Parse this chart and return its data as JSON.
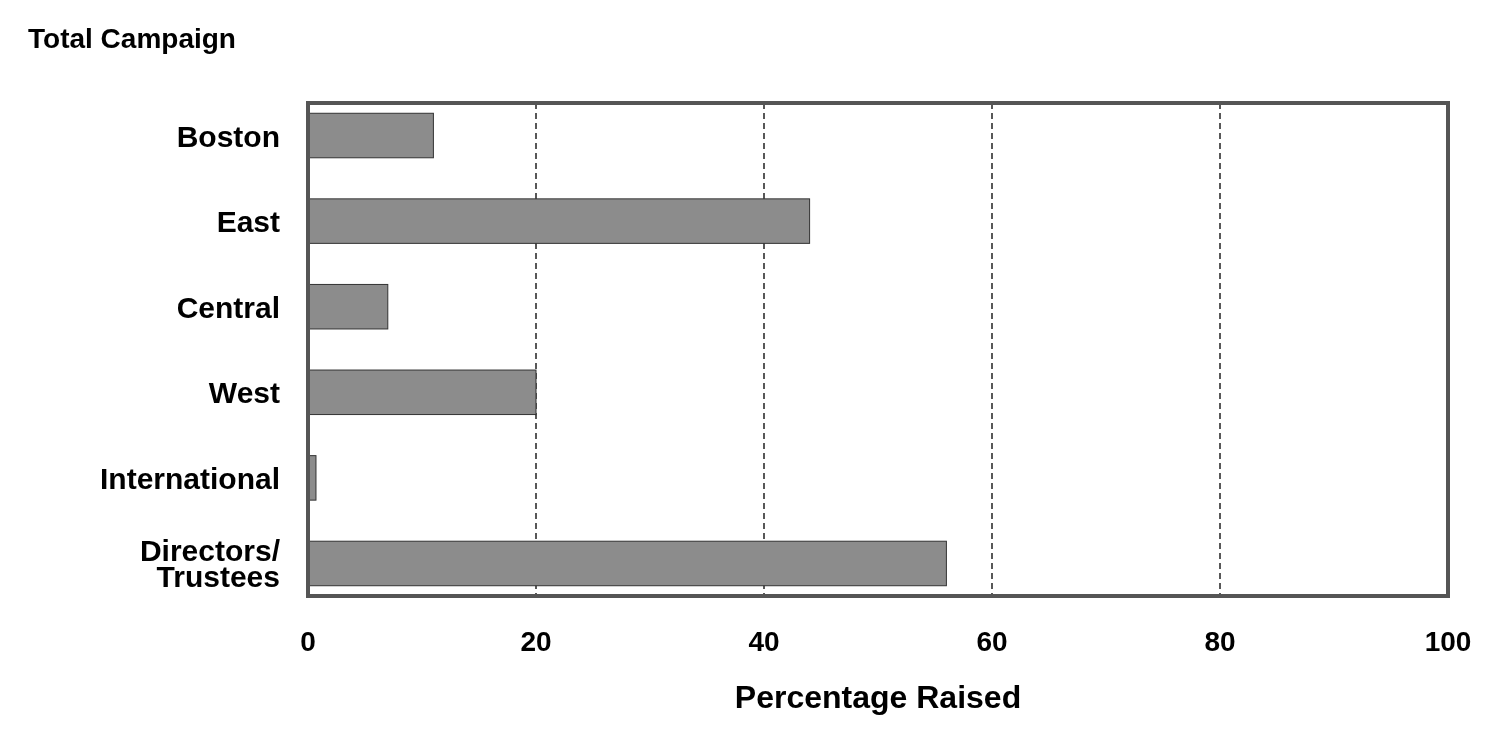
{
  "chart_data": {
    "type": "bar",
    "title": "Total Campaign",
    "orientation": "horizontal",
    "xlabel": "Percentage Raised",
    "categories": [
      "Boston",
      "East",
      "Central",
      "West",
      "International",
      "Directors/\nTrustees"
    ],
    "values": [
      11,
      44,
      7,
      20,
      0.7,
      56
    ],
    "color": "#8c8c8c",
    "xlim": [
      0,
      100
    ],
    "xticks": [
      0,
      20,
      40,
      60,
      80,
      100
    ],
    "grid": "x"
  }
}
